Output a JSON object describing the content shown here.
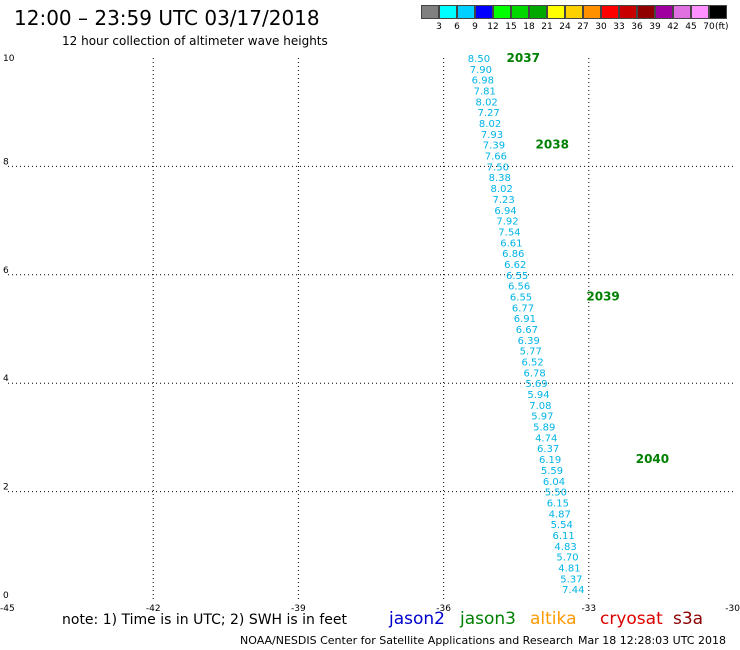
{
  "title": "12:00 – 23:59 UTC 03/17/2018",
  "subtitle": "12 hour collection of altimeter wave heights",
  "colorbar": {
    "unit": "(ft)",
    "colors": [
      "#808080",
      "#00ffff",
      "#00d0ff",
      "#0000ff",
      "#00ff00",
      "#00d800",
      "#00a800",
      "#ffff00",
      "#ffd000",
      "#ff9000",
      "#ff0000",
      "#c80000",
      "#900000",
      "#a000a0",
      "#e070e0",
      "#ff90ff",
      "#000000"
    ],
    "labels": [
      "3",
      "6",
      "9",
      "12",
      "15",
      "18",
      "21",
      "24",
      "27",
      "30",
      "33",
      "36",
      "39",
      "42",
      "45",
      "70"
    ]
  },
  "axes": {
    "x_ticks": [
      "-45",
      "-42",
      "-39",
      "-36",
      "-33",
      "-30"
    ],
    "y_ticks": [
      "0",
      "2",
      "4",
      "6",
      "8",
      "10"
    ],
    "x_range": [
      -45,
      -30
    ],
    "y_range": [
      0,
      10
    ]
  },
  "wave_heights": [
    {
      "lon": -35.5,
      "lat": 10.0,
      "swh": "8.50"
    },
    {
      "lon": -35.46,
      "lat": 9.8,
      "swh": "7.90"
    },
    {
      "lon": -35.42,
      "lat": 9.6,
      "swh": "6.98"
    },
    {
      "lon": -35.38,
      "lat": 9.4,
      "swh": "7.81"
    },
    {
      "lon": -35.34,
      "lat": 9.2,
      "swh": "8.02"
    },
    {
      "lon": -35.3,
      "lat": 9.0,
      "swh": "7.27"
    },
    {
      "lon": -35.27,
      "lat": 8.8,
      "swh": "8.02"
    },
    {
      "lon": -35.23,
      "lat": 8.6,
      "swh": "7.93"
    },
    {
      "lon": -35.19,
      "lat": 8.4,
      "swh": "7.39"
    },
    {
      "lon": -35.15,
      "lat": 8.2,
      "swh": "7.66"
    },
    {
      "lon": -35.11,
      "lat": 8.0,
      "swh": "7.50"
    },
    {
      "lon": -35.07,
      "lat": 7.8,
      "swh": "8.38"
    },
    {
      "lon": -35.03,
      "lat": 7.6,
      "swh": "8.02"
    },
    {
      "lon": -34.99,
      "lat": 7.4,
      "swh": "7.23"
    },
    {
      "lon": -34.95,
      "lat": 7.2,
      "swh": "6.94"
    },
    {
      "lon": -34.91,
      "lat": 7.0,
      "swh": "7.92"
    },
    {
      "lon": -34.87,
      "lat": 6.8,
      "swh": "7.54"
    },
    {
      "lon": -34.83,
      "lat": 6.6,
      "swh": "6.61"
    },
    {
      "lon": -34.79,
      "lat": 6.4,
      "swh": "6.86"
    },
    {
      "lon": -34.75,
      "lat": 6.2,
      "swh": "6.62"
    },
    {
      "lon": -34.71,
      "lat": 6.0,
      "swh": "6.55"
    },
    {
      "lon": -34.67,
      "lat": 5.8,
      "swh": "6.56"
    },
    {
      "lon": -34.63,
      "lat": 5.6,
      "swh": "6.55"
    },
    {
      "lon": -34.59,
      "lat": 5.4,
      "swh": "6.77"
    },
    {
      "lon": -34.55,
      "lat": 5.2,
      "swh": "6.91"
    },
    {
      "lon": -34.51,
      "lat": 5.0,
      "swh": "6.67"
    },
    {
      "lon": -34.47,
      "lat": 4.8,
      "swh": "6.39"
    },
    {
      "lon": -34.43,
      "lat": 4.6,
      "swh": "5.77"
    },
    {
      "lon": -34.39,
      "lat": 4.4,
      "swh": "6.52"
    },
    {
      "lon": -34.35,
      "lat": 4.2,
      "swh": "6.78"
    },
    {
      "lon": -34.31,
      "lat": 4.0,
      "swh": "5.69"
    },
    {
      "lon": -34.27,
      "lat": 3.8,
      "swh": "5.94"
    },
    {
      "lon": -34.23,
      "lat": 3.6,
      "swh": "7.08"
    },
    {
      "lon": -34.19,
      "lat": 3.4,
      "swh": "5.97"
    },
    {
      "lon": -34.15,
      "lat": 3.2,
      "swh": "5.89"
    },
    {
      "lon": -34.11,
      "lat": 3.0,
      "swh": "4.74"
    },
    {
      "lon": -34.07,
      "lat": 2.8,
      "swh": "6.37"
    },
    {
      "lon": -34.03,
      "lat": 2.6,
      "swh": "6.19"
    },
    {
      "lon": -33.99,
      "lat": 2.4,
      "swh": "5.59"
    },
    {
      "lon": -33.95,
      "lat": 2.2,
      "swh": "6.04"
    },
    {
      "lon": -33.91,
      "lat": 2.0,
      "swh": "5.50"
    },
    {
      "lon": -33.87,
      "lat": 1.8,
      "swh": "6.15"
    },
    {
      "lon": -33.83,
      "lat": 1.6,
      "swh": "4.87"
    },
    {
      "lon": -33.79,
      "lat": 1.4,
      "swh": "5.54"
    },
    {
      "lon": -33.75,
      "lat": 1.2,
      "swh": "6.11"
    },
    {
      "lon": -33.71,
      "lat": 1.0,
      "swh": "4.83"
    },
    {
      "lon": -33.67,
      "lat": 0.8,
      "swh": "5.70"
    },
    {
      "lon": -33.63,
      "lat": 0.6,
      "swh": "4.81"
    },
    {
      "lon": -33.59,
      "lat": 0.4,
      "swh": "5.37"
    },
    {
      "lon": -33.55,
      "lat": 0.2,
      "swh": "7.44"
    }
  ],
  "pass_labels": [
    {
      "text": "2037",
      "lon": -34.7,
      "lat": 10.0
    },
    {
      "text": "2038",
      "lon": -34.1,
      "lat": 8.4
    },
    {
      "text": "2039",
      "lon": -33.05,
      "lat": 5.6
    },
    {
      "text": "2040",
      "lon": -32.03,
      "lat": 2.6
    }
  ],
  "note": "note:  1) Time is in UTC;  2) SWH is in feet",
  "satellites": [
    {
      "name": "jason2",
      "color": "#0000cc"
    },
    {
      "name": "jason3",
      "color": "#008000"
    },
    {
      "name": "altika",
      "color": "#ff9900"
    },
    {
      "name": "cryosat",
      "color": "#dd0000"
    },
    {
      "name": "s3a",
      "color": "#8b0000"
    }
  ],
  "credit": "NOAA/NESDIS Center for Satellite Applications and Research",
  "timestamp": "Mar 18 12:28:03 UTC 2018"
}
